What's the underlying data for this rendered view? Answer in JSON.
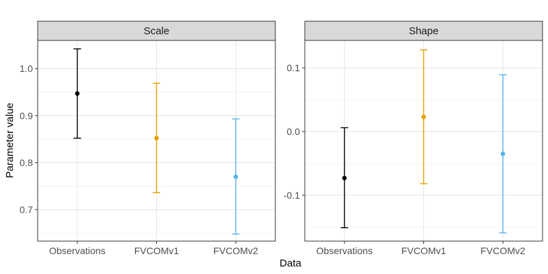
{
  "chart_data": {
    "type": "errorbar",
    "xlabel": "Data",
    "ylabel": "Parameter value",
    "categories": [
      "Observations",
      "FVCOMv1",
      "FVCOMv2"
    ],
    "colors": [
      "#000000",
      "#E69F00",
      "#56B4E9"
    ],
    "grid": true,
    "panels": [
      {
        "title": "Scale",
        "ylim": [
          0.633,
          1.06
        ],
        "yticks": [
          0.7,
          0.8,
          0.9,
          1.0
        ],
        "ytick_labels": [
          "0.7",
          "0.8",
          "0.9",
          "1.0"
        ],
        "points": [
          {
            "category": "Observations",
            "value": 0.947,
            "lower": 0.852,
            "upper": 1.042
          },
          {
            "category": "FVCOMv1",
            "value": 0.852,
            "lower": 0.736,
            "upper": 0.969
          },
          {
            "category": "FVCOMv2",
            "value": 0.77,
            "lower": 0.648,
            "upper": 0.893
          }
        ]
      },
      {
        "title": "Shape",
        "ylim": [
          -0.172,
          0.143
        ],
        "yticks": [
          -0.1,
          0.0,
          0.1
        ],
        "ytick_labels": [
          "-0.1",
          "0.0",
          "0.1"
        ],
        "points": [
          {
            "category": "Observations",
            "value": -0.073,
            "lower": -0.151,
            "upper": 0.006
          },
          {
            "category": "FVCOMv1",
            "value": 0.023,
            "lower": -0.082,
            "upper": 0.128
          },
          {
            "category": "FVCOMv2",
            "value": -0.035,
            "lower": -0.159,
            "upper": 0.089
          }
        ]
      }
    ]
  }
}
